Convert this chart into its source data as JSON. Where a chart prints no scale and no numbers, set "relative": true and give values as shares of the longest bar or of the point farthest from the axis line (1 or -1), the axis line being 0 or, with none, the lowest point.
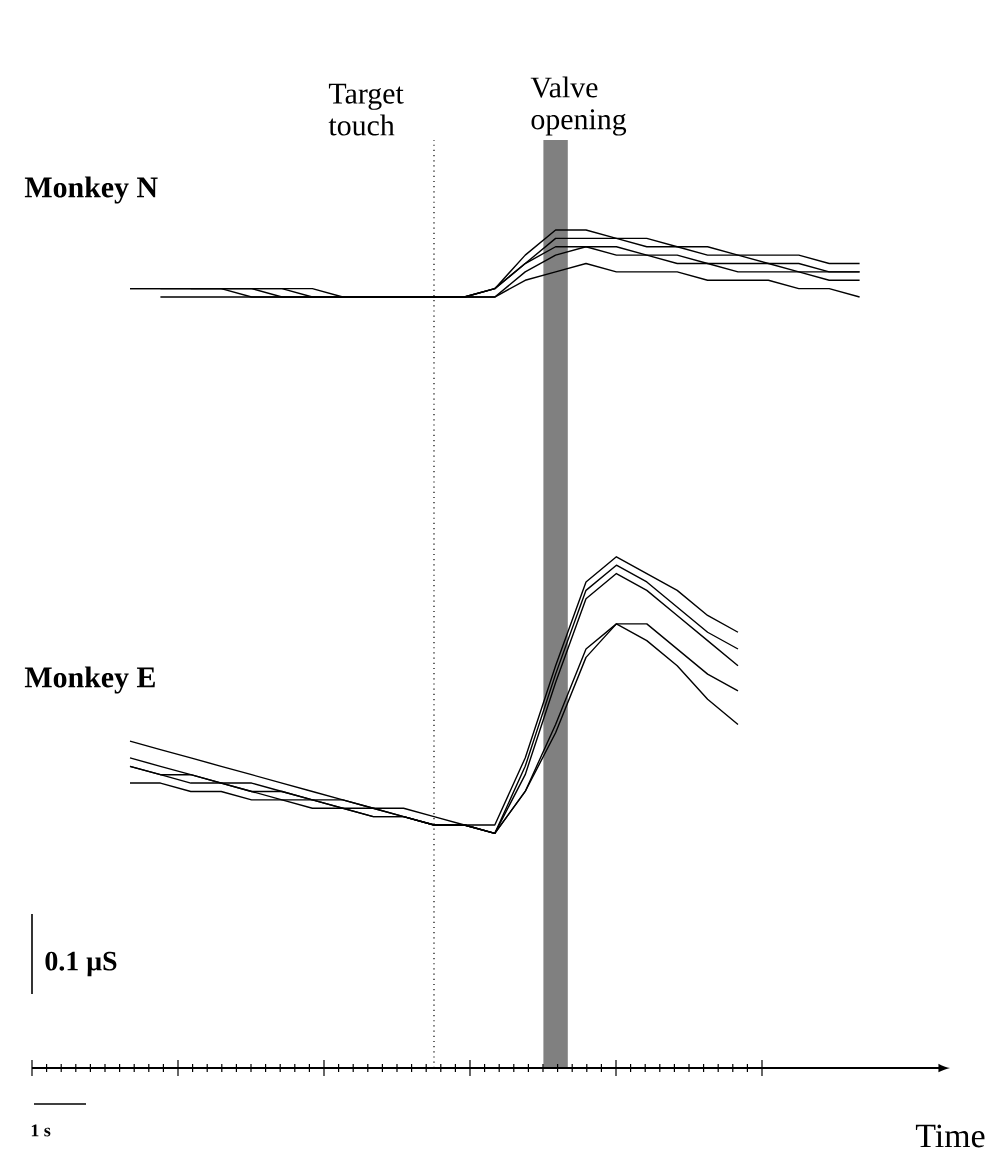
{
  "chart_data": {
    "type": "line",
    "relative": true,
    "xlabel": "Time",
    "categories": [
      null,
      null,
      null,
      null,
      null,
      null,
      null,
      null,
      null,
      null,
      null,
      null,
      null,
      null,
      null,
      null,
      null,
      null,
      null,
      null,
      null,
      null,
      null,
      null,
      null
    ],
    "annotations": [
      "Monkey N",
      "Monkey E",
      "0.1 μS",
      "1 s",
      "Target touch",
      "Valve opening"
    ],
    "series": [
      {
        "color": "#000000",
        "values": [
          0.93,
          0.93,
          0.93,
          0.93,
          0.93,
          0.93,
          0.93,
          0.92,
          0.92,
          0.92,
          0.92,
          0.92,
          0.93,
          0.97,
          1.0,
          1.0,
          0.99,
          0.99,
          0.98,
          0.98,
          0.97,
          0.97,
          0.97,
          0.96,
          0.96
        ]
      },
      {
        "color": "#000000",
        "values": [
          0.93,
          0.93,
          0.93,
          0.93,
          0.93,
          0.92,
          0.92,
          0.92,
          0.92,
          0.92,
          0.92,
          0.92,
          0.93,
          0.96,
          0.99,
          0.99,
          0.99,
          0.98,
          0.98,
          0.97,
          0.97,
          0.96,
          0.96,
          0.95,
          0.95
        ]
      },
      {
        "color": "#000000",
        "values": [
          null,
          0.93,
          0.93,
          0.93,
          0.92,
          0.92,
          0.92,
          0.92,
          0.92,
          0.92,
          0.92,
          0.92,
          0.93,
          0.96,
          0.98,
          0.98,
          0.98,
          0.97,
          0.97,
          0.96,
          0.96,
          0.96,
          0.95,
          0.95,
          0.95
        ]
      },
      {
        "color": "#000000",
        "values": [
          null,
          0.92,
          0.92,
          0.92,
          0.92,
          0.92,
          0.92,
          0.92,
          0.92,
          0.92,
          0.92,
          0.92,
          0.92,
          0.95,
          0.97,
          0.98,
          0.97,
          0.97,
          0.96,
          0.96,
          0.95,
          0.95,
          0.95,
          0.94,
          0.94
        ]
      },
      {
        "color": "#000000",
        "values": [
          null,
          null,
          0.93,
          0.93,
          0.93,
          0.93,
          0.92,
          0.92,
          0.92,
          0.92,
          0.92,
          0.92,
          0.92,
          0.94,
          0.95,
          0.96,
          0.95,
          0.95,
          0.95,
          0.94,
          0.94,
          0.94,
          0.93,
          0.93,
          0.92
        ]
      },
      {
        "color": "#000000",
        "values": [
          0.39,
          0.38,
          0.37,
          0.36,
          0.35,
          0.34,
          0.33,
          0.32,
          0.31,
          0.31,
          0.3,
          0.29,
          0.29,
          0.37,
          0.48,
          0.58,
          0.61,
          0.59,
          0.57,
          0.54,
          0.52,
          null,
          null,
          null,
          null
        ]
      },
      {
        "color": "#000000",
        "values": [
          0.37,
          0.36,
          0.35,
          0.34,
          0.34,
          0.33,
          0.32,
          0.32,
          0.31,
          0.3,
          0.29,
          0.29,
          0.28,
          0.36,
          0.47,
          0.57,
          0.6,
          0.58,
          0.55,
          0.52,
          0.5,
          null,
          null,
          null,
          null
        ]
      },
      {
        "color": "#000000",
        "values": [
          0.36,
          0.35,
          0.35,
          0.34,
          0.33,
          0.33,
          0.32,
          0.31,
          0.31,
          0.3,
          0.29,
          0.29,
          0.28,
          0.35,
          0.46,
          0.56,
          0.59,
          0.57,
          0.54,
          0.51,
          0.48,
          null,
          null,
          null,
          null
        ]
      },
      {
        "color": "#000000",
        "values": [
          0.36,
          0.35,
          0.34,
          0.34,
          0.33,
          0.32,
          0.32,
          0.31,
          0.3,
          0.3,
          0.29,
          0.29,
          0.28,
          0.33,
          0.41,
          0.5,
          0.53,
          0.53,
          0.5,
          0.47,
          0.45,
          null,
          null,
          null,
          null
        ]
      },
      {
        "color": "#000000",
        "values": [
          0.34,
          0.34,
          0.33,
          0.33,
          0.32,
          0.32,
          0.31,
          0.31,
          0.3,
          0.3,
          0.29,
          0.29,
          0.28,
          0.33,
          0.4,
          0.49,
          0.53,
          0.51,
          0.48,
          0.44,
          0.41,
          null,
          null,
          null,
          null
        ]
      }
    ]
  }
}
